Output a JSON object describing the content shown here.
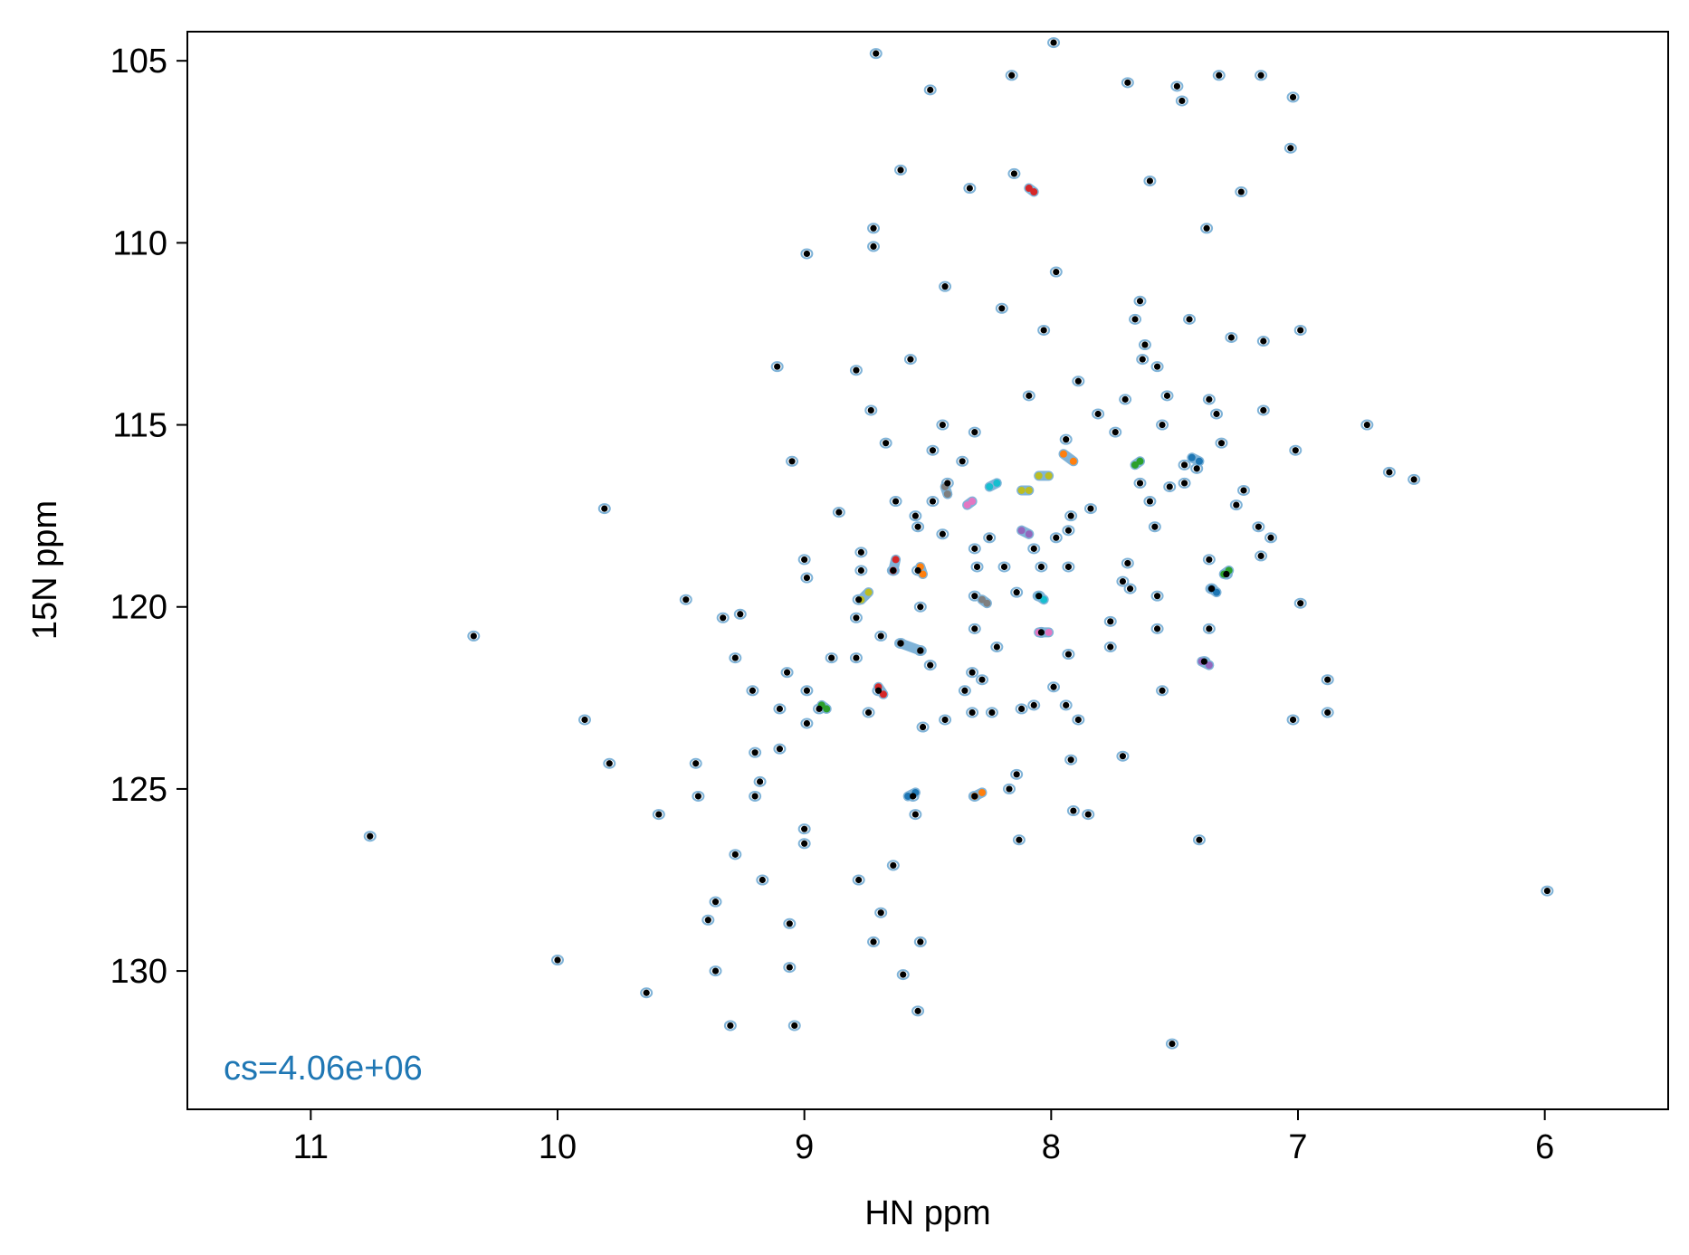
{
  "chart_data": {
    "type": "scatter",
    "xlabel": "HN ppm",
    "ylabel": "15N ppm",
    "xlim": [
      11.5,
      5.5
    ],
    "ylim": [
      133.8,
      104.2
    ],
    "x_ticks": [
      11,
      10,
      9,
      8,
      7,
      6
    ],
    "x_tick_labels": [
      "11",
      "10",
      "9",
      "8",
      "7",
      "6"
    ],
    "y_ticks": [
      105,
      110,
      115,
      120,
      125,
      130
    ],
    "y_tick_labels": [
      "105",
      "110",
      "115",
      "120",
      "125",
      "130"
    ],
    "grid": false,
    "annotation": {
      "text": "cs=4.06e+06",
      "color": "#1f77b4",
      "position": "bottom-left"
    },
    "contour_color": "#7fb3d8",
    "peak_color": "#000000",
    "peaks": [
      [
        7.99,
        104.5
      ],
      [
        8.71,
        104.8
      ],
      [
        8.49,
        105.8
      ],
      [
        8.16,
        105.4
      ],
      [
        7.69,
        105.6
      ],
      [
        7.49,
        105.7
      ],
      [
        7.47,
        106.1
      ],
      [
        7.32,
        105.4
      ],
      [
        7.15,
        105.4
      ],
      [
        7.02,
        106.0
      ],
      [
        7.03,
        107.4
      ],
      [
        8.61,
        108.0
      ],
      [
        8.33,
        108.5
      ],
      [
        8.15,
        108.1
      ],
      [
        7.6,
        108.3
      ],
      [
        7.23,
        108.6
      ],
      [
        8.72,
        109.6
      ],
      [
        8.72,
        110.1
      ],
      [
        8.99,
        110.3
      ],
      [
        7.98,
        110.8
      ],
      [
        7.37,
        109.6
      ],
      [
        8.43,
        111.2
      ],
      [
        8.2,
        111.8
      ],
      [
        7.64,
        111.6
      ],
      [
        7.66,
        112.1
      ],
      [
        8.03,
        112.4
      ],
      [
        7.44,
        112.1
      ],
      [
        7.27,
        112.6
      ],
      [
        6.99,
        112.4
      ],
      [
        7.14,
        112.7
      ],
      [
        7.62,
        112.8
      ],
      [
        7.63,
        113.2
      ],
      [
        7.57,
        113.4
      ],
      [
        8.57,
        113.2
      ],
      [
        9.11,
        113.4
      ],
      [
        8.79,
        113.5
      ],
      [
        7.89,
        113.8
      ],
      [
        8.09,
        114.2
      ],
      [
        7.7,
        114.3
      ],
      [
        7.53,
        114.2
      ],
      [
        7.36,
        114.3
      ],
      [
        7.14,
        114.6
      ],
      [
        8.73,
        114.6
      ],
      [
        7.81,
        114.7
      ],
      [
        7.33,
        114.7
      ],
      [
        8.44,
        115.0
      ],
      [
        7.55,
        115.0
      ],
      [
        6.72,
        115.0
      ],
      [
        8.31,
        115.2
      ],
      [
        7.94,
        115.4
      ],
      [
        7.74,
        115.2
      ],
      [
        7.31,
        115.5
      ],
      [
        8.67,
        115.5
      ],
      [
        8.48,
        115.7
      ],
      [
        7.01,
        115.7
      ],
      [
        9.05,
        116.0
      ],
      [
        8.36,
        116.0
      ],
      [
        7.46,
        116.1
      ],
      [
        7.41,
        116.2
      ],
      [
        8.42,
        116.6
      ],
      [
        7.64,
        116.6
      ],
      [
        7.52,
        116.7
      ],
      [
        7.46,
        116.6
      ],
      [
        7.22,
        116.8
      ],
      [
        6.63,
        116.3
      ],
      [
        6.53,
        116.5
      ],
      [
        9.81,
        117.3
      ],
      [
        8.63,
        117.1
      ],
      [
        8.48,
        117.1
      ],
      [
        7.6,
        117.1
      ],
      [
        7.84,
        117.3
      ],
      [
        7.92,
        117.5
      ],
      [
        7.25,
        117.2
      ],
      [
        8.55,
        117.5
      ],
      [
        8.86,
        117.4
      ],
      [
        8.54,
        117.8
      ],
      [
        8.44,
        118.0
      ],
      [
        8.25,
        118.1
      ],
      [
        7.93,
        117.9
      ],
      [
        7.58,
        117.8
      ],
      [
        7.16,
        117.8
      ],
      [
        7.11,
        118.1
      ],
      [
        8.77,
        118.5
      ],
      [
        8.31,
        118.4
      ],
      [
        8.07,
        118.4
      ],
      [
        7.98,
        118.1
      ],
      [
        7.15,
        118.6
      ],
      [
        9.0,
        118.7
      ],
      [
        8.77,
        119.0
      ],
      [
        8.54,
        119.0
      ],
      [
        8.3,
        118.9
      ],
      [
        8.19,
        118.9
      ],
      [
        8.04,
        118.9
      ],
      [
        7.93,
        118.9
      ],
      [
        7.69,
        118.8
      ],
      [
        7.36,
        118.7
      ],
      [
        7.29,
        119.1
      ],
      [
        8.99,
        119.2
      ],
      [
        8.64,
        119.0
      ],
      [
        7.71,
        119.3
      ],
      [
        7.35,
        119.5
      ],
      [
        7.57,
        119.7
      ],
      [
        9.48,
        119.8
      ],
      [
        8.78,
        119.8
      ],
      [
        8.53,
        120.0
      ],
      [
        8.31,
        119.7
      ],
      [
        8.14,
        119.6
      ],
      [
        8.05,
        119.7
      ],
      [
        7.68,
        119.5
      ],
      [
        6.99,
        119.9
      ],
      [
        9.33,
        120.3
      ],
      [
        9.26,
        120.2
      ],
      [
        8.79,
        120.3
      ],
      [
        8.69,
        120.8
      ],
      [
        8.31,
        120.6
      ],
      [
        8.04,
        120.7
      ],
      [
        7.76,
        120.4
      ],
      [
        7.57,
        120.6
      ],
      [
        7.36,
        120.6
      ],
      [
        10.34,
        120.8
      ],
      [
        8.61,
        121.0
      ],
      [
        8.22,
        121.1
      ],
      [
        7.93,
        121.3
      ],
      [
        7.76,
        121.1
      ],
      [
        9.28,
        121.4
      ],
      [
        8.89,
        121.4
      ],
      [
        8.79,
        121.4
      ],
      [
        8.53,
        121.2
      ],
      [
        8.49,
        121.6
      ],
      [
        7.38,
        121.5
      ],
      [
        9.07,
        121.8
      ],
      [
        8.32,
        121.8
      ],
      [
        8.28,
        122.0
      ],
      [
        7.99,
        122.2
      ],
      [
        6.88,
        122.0
      ],
      [
        9.21,
        122.3
      ],
      [
        8.99,
        122.3
      ],
      [
        8.7,
        122.3
      ],
      [
        8.35,
        122.3
      ],
      [
        7.55,
        122.3
      ],
      [
        9.1,
        122.8
      ],
      [
        8.94,
        122.8
      ],
      [
        8.74,
        122.9
      ],
      [
        8.32,
        122.9
      ],
      [
        8.24,
        122.9
      ],
      [
        8.12,
        122.8
      ],
      [
        8.07,
        122.7
      ],
      [
        7.94,
        122.7
      ],
      [
        7.89,
        123.1
      ],
      [
        7.02,
        123.1
      ],
      [
        6.88,
        122.9
      ],
      [
        9.89,
        123.1
      ],
      [
        8.99,
        123.2
      ],
      [
        8.52,
        123.3
      ],
      [
        8.43,
        123.1
      ],
      [
        9.2,
        124.0
      ],
      [
        9.1,
        123.9
      ],
      [
        7.71,
        124.1
      ],
      [
        9.44,
        124.3
      ],
      [
        9.79,
        124.3
      ],
      [
        7.92,
        124.2
      ],
      [
        8.14,
        124.6
      ],
      [
        9.18,
        124.8
      ],
      [
        8.17,
        125.0
      ],
      [
        9.43,
        125.2
      ],
      [
        9.2,
        125.2
      ],
      [
        8.56,
        125.2
      ],
      [
        8.31,
        125.2
      ],
      [
        7.91,
        125.6
      ],
      [
        7.85,
        125.7
      ],
      [
        9.59,
        125.7
      ],
      [
        8.55,
        125.7
      ],
      [
        9.0,
        126.1
      ],
      [
        10.76,
        126.3
      ],
      [
        9.0,
        126.5
      ],
      [
        8.13,
        126.4
      ],
      [
        7.4,
        126.4
      ],
      [
        9.28,
        126.8
      ],
      [
        8.64,
        127.1
      ],
      [
        8.78,
        127.5
      ],
      [
        9.17,
        127.5
      ],
      [
        5.99,
        127.8
      ],
      [
        9.36,
        128.1
      ],
      [
        8.69,
        128.4
      ],
      [
        9.39,
        128.6
      ],
      [
        9.06,
        128.7
      ],
      [
        8.72,
        129.2
      ],
      [
        8.53,
        129.2
      ],
      [
        9.06,
        129.9
      ],
      [
        10.0,
        129.7
      ],
      [
        9.36,
        130.0
      ],
      [
        8.6,
        130.1
      ],
      [
        9.64,
        130.6
      ],
      [
        8.54,
        131.1
      ],
      [
        9.3,
        131.5
      ],
      [
        9.04,
        131.5
      ],
      [
        7.51,
        132.0
      ]
    ],
    "assigned_peaks": [
      {
        "color": "#d62728",
        "points": [
          [
            8.09,
            108.5
          ],
          [
            8.07,
            108.6
          ]
        ]
      },
      {
        "color": "#2ca02c",
        "points": [
          [
            7.66,
            116.1
          ],
          [
            7.64,
            116.0
          ]
        ]
      },
      {
        "color": "#ff7f0e",
        "points": [
          [
            7.95,
            115.8
          ],
          [
            7.91,
            116.0
          ]
        ]
      },
      {
        "color": "#1f77b4",
        "points": [
          [
            7.43,
            115.9
          ],
          [
            7.4,
            116.0
          ]
        ]
      },
      {
        "color": "#bcbd22",
        "points": [
          [
            8.05,
            116.4
          ],
          [
            8.01,
            116.4
          ]
        ]
      },
      {
        "color": "#bcbd22",
        "points": [
          [
            8.12,
            116.8
          ],
          [
            8.09,
            116.8
          ]
        ]
      },
      {
        "color": "#17becf",
        "points": [
          [
            8.25,
            116.7
          ],
          [
            8.22,
            116.6
          ]
        ]
      },
      {
        "color": "#e377c2",
        "points": [
          [
            8.34,
            117.2
          ],
          [
            8.32,
            117.1
          ]
        ]
      },
      {
        "color": "#9467bd",
        "points": [
          [
            8.12,
            117.9
          ],
          [
            8.09,
            118.0
          ]
        ]
      },
      {
        "color": "#7f7f7f",
        "points": [
          [
            8.43,
            116.7
          ],
          [
            8.42,
            116.9
          ]
        ]
      },
      {
        "color": "#d62728",
        "points": [
          [
            8.63,
            118.7
          ],
          [
            8.64,
            119.0
          ]
        ]
      },
      {
        "color": "#ff7f0e",
        "points": [
          [
            8.53,
            118.9
          ],
          [
            8.52,
            119.1
          ]
        ]
      },
      {
        "color": "#bcbd22",
        "points": [
          [
            8.77,
            119.8
          ],
          [
            8.74,
            119.6
          ]
        ]
      },
      {
        "color": "#7f7f7f",
        "points": [
          [
            8.28,
            119.8
          ],
          [
            8.26,
            119.9
          ]
        ]
      },
      {
        "color": "#17becf",
        "points": [
          [
            8.05,
            119.7
          ],
          [
            8.03,
            119.8
          ]
        ]
      },
      {
        "color": "#e377c2",
        "points": [
          [
            8.05,
            120.7
          ],
          [
            8.01,
            120.7
          ]
        ]
      },
      {
        "color": "#1f77b4",
        "points": [
          [
            7.35,
            119.5
          ],
          [
            7.33,
            119.6
          ]
        ]
      },
      {
        "color": "#2ca02c",
        "points": [
          [
            7.3,
            119.1
          ],
          [
            7.28,
            119.0
          ]
        ]
      },
      {
        "color": "#9467bd",
        "points": [
          [
            7.39,
            121.5
          ],
          [
            7.36,
            121.6
          ]
        ]
      },
      {
        "color": "#7f7f7f",
        "points": [
          [
            8.61,
            121.0
          ],
          [
            8.53,
            121.2
          ]
        ]
      },
      {
        "color": "#d62728",
        "points": [
          [
            8.7,
            122.2
          ],
          [
            8.68,
            122.4
          ]
        ]
      },
      {
        "color": "#2ca02c",
        "points": [
          [
            8.93,
            122.7
          ],
          [
            8.91,
            122.8
          ]
        ]
      },
      {
        "color": "#1f77b4",
        "points": [
          [
            8.58,
            125.2
          ],
          [
            8.55,
            125.1
          ]
        ]
      },
      {
        "color": "#ff7f0e",
        "points": [
          [
            8.31,
            125.2
          ],
          [
            8.28,
            125.1
          ]
        ]
      }
    ]
  }
}
